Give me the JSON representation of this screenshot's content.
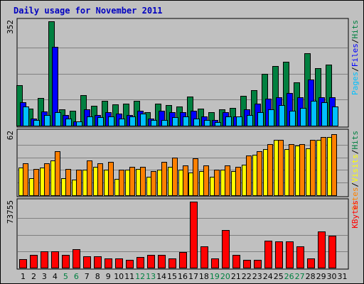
{
  "title": "Daily usage for November 2011",
  "colors": {
    "background": "#c0c0c0",
    "title": "#0000c0",
    "hits": "#008040",
    "files": "#0000ff",
    "pages": "#00c0ff",
    "visits": "#ffff00",
    "sites": "#ff8000",
    "kbytes": "#ff0000",
    "weekend_label": "#008040",
    "weekday_label": "#000000"
  },
  "chart_data": {
    "type": "bar",
    "categories": [
      "1",
      "2",
      "3",
      "4",
      "5",
      "6",
      "7",
      "8",
      "9",
      "10",
      "11",
      "12",
      "13",
      "14",
      "15",
      "16",
      "17",
      "18",
      "19",
      "20",
      "21",
      "22",
      "23",
      "24",
      "25",
      "26",
      "27",
      "28",
      "29",
      "30",
      "31"
    ],
    "weekend_days": [
      "5",
      "6",
      "12",
      "13",
      "19",
      "20",
      "26",
      "27"
    ],
    "panels": [
      {
        "id": "requests",
        "max_label": "352",
        "ylim": [
          0,
          352
        ],
        "legend": [
          "Pages",
          "Files",
          "Hits"
        ],
        "series": [
          {
            "name": "Hits",
            "color": "#008040",
            "values": [
              136,
              58,
              93,
              352,
              56,
              50,
              102,
              66,
              83,
              72,
              75,
              85,
              45,
              75,
              70,
              64,
              97,
              58,
              45,
              55,
              60,
              100,
              120,
              175,
              200,
              215,
              145,
              245,
              195,
              205,
              0
            ]
          },
          {
            "name": "Files",
            "color": "#0000ff",
            "values": [
              80,
              25,
              48,
              265,
              36,
              15,
              55,
              35,
              45,
              40,
              35,
              50,
              25,
              50,
              45,
              45,
              50,
              30,
              20,
              45,
              30,
              55,
              75,
              90,
              95,
              110,
              95,
              155,
              95,
              95,
              0
            ]
          },
          {
            "name": "Pages",
            "color": "#00c0ff",
            "values": [
              65,
              18,
              35,
              45,
              25,
              14,
              30,
              28,
              30,
              25,
              30,
              40,
              18,
              20,
              28,
              30,
              25,
              20,
              12,
              30,
              30,
              35,
              45,
              55,
              70,
              50,
              60,
              85,
              80,
              65,
              0
            ]
          }
        ]
      },
      {
        "id": "visits",
        "max_label": "62",
        "ylim": [
          0,
          62
        ],
        "legend": [
          "Sites",
          "Visits",
          "Hits"
        ],
        "series": [
          {
            "name": "Visits",
            "color": "#ffff00",
            "values": [
              27,
              17,
              27,
              34,
              17,
              15,
              25,
              28,
              25,
              16,
              25,
              26,
              18,
              25,
              28,
              25,
              22,
              24,
              18,
              25,
              24,
              30,
              40,
              45,
              54,
              45,
              49,
              46,
              54,
              57,
              0
            ]
          },
          {
            "name": "Sites",
            "color": "#ff8000",
            "values": [
              31,
              26,
              31,
              43,
              26,
              25,
              34,
              31,
              33,
              25,
              28,
              28,
              24,
              33,
              37,
              29,
              36,
              29,
              25,
              29,
              28,
              39,
              43,
              50,
              54,
              50,
              50,
              54,
              57,
              60,
              0
            ]
          }
        ]
      },
      {
        "id": "kbytes",
        "max_label": "73755",
        "ylim": [
          0,
          73755
        ],
        "legend": [
          "KBytes"
        ],
        "series": [
          {
            "name": "KBytes",
            "color": "#ff0000",
            "values": [
              9500,
              14500,
              18000,
              18000,
              14500,
              21000,
              13000,
              13000,
              10500,
              10000,
              8500,
              11500,
              14000,
              14000,
              10500,
              17500,
              73755,
              23500,
              10000,
              42000,
              14000,
              8500,
              8500,
              30500,
              29500,
              29500,
              23500,
              10500,
              40500,
              35500,
              0
            ]
          }
        ]
      }
    ]
  }
}
